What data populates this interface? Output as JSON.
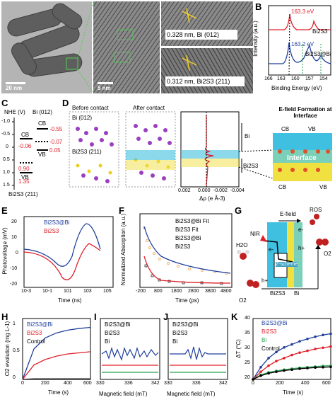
{
  "labels": [
    "A",
    "B",
    "C",
    "D",
    "E",
    "F",
    "G",
    "H",
    "I",
    "J",
    "K"
  ],
  "panel_a": {
    "scale_bar_1": "20 nm",
    "scale_bar_2": "5 nm",
    "inset_top": "0.328 nm, Bi (012)",
    "inset_bottom": "0.312 nm, Bi2S3 (211)"
  },
  "chart_data": [
    {
      "panel": "B",
      "type": "line",
      "xlabel": "Binding Energy (eV)",
      "ylabel": "Intensity (a.u.)",
      "xticks": [
        166,
        163,
        160,
        157,
        154
      ],
      "annotations": [
        "163.3 eV",
        "163.2 eV"
      ],
      "series": [
        {
          "name": "Bi2S3",
          "color": "#e0202a"
        },
        {
          "name": "Bi2S3@Bi",
          "color": "#1f3f9c"
        }
      ]
    },
    {
      "panel": "E",
      "type": "line",
      "xlabel": "Time (ns)",
      "ylabel": "Photovoltage (mV)",
      "yticks": [
        -20,
        -10,
        0,
        10,
        20
      ],
      "xticks": [
        "10-3",
        "10-1",
        "101",
        "103",
        "105"
      ],
      "series": [
        {
          "name": "Bi2S3@Bi",
          "color": "#1f3f9c"
        },
        {
          "name": "Bi2S3",
          "color": "#e0202a"
        }
      ]
    },
    {
      "panel": "F",
      "type": "line",
      "xlabel": "Time (ps)",
      "ylabel": "Normalized Absorption (a.u.)",
      "xticks": [
        -200,
        800,
        1800,
        2800,
        3800,
        4800
      ],
      "series": [
        {
          "name": "Bi2S3@Bi Fit",
          "color": "#1f3f9c"
        },
        {
          "name": "Bi2S3 Fit",
          "color": "#e0202a"
        },
        {
          "name": "Bi2S3@Bi",
          "color": "#f0a040"
        },
        {
          "name": "Bi2S3",
          "color": "#333333"
        }
      ]
    },
    {
      "panel": "H",
      "type": "line",
      "xlabel": "Time (s)",
      "ylabel": "O2 evolution (mg L-1)",
      "xticks": [
        0,
        200,
        400,
        600
      ],
      "yticks": [
        0.0,
        0.5,
        1.0
      ],
      "x": [
        0,
        100,
        200,
        300,
        400,
        500,
        600
      ],
      "series": [
        {
          "name": "Bi2S3@Bi",
          "color": "#1f3f9c",
          "values": [
            0,
            0.55,
            0.75,
            0.84,
            0.89,
            0.92,
            0.94
          ]
        },
        {
          "name": "Bi2S3",
          "color": "#e0202a",
          "values": [
            0,
            0.26,
            0.36,
            0.42,
            0.46,
            0.48,
            0.5
          ]
        },
        {
          "name": "Control",
          "color": "#000000",
          "values": [
            0,
            0.01,
            0.01,
            0.01,
            0.01,
            0.01,
            0.01
          ]
        }
      ]
    },
    {
      "panel": "I",
      "type": "line",
      "xlabel": "Magnetic field (mT)",
      "xticks": [
        330,
        336,
        342
      ],
      "series": [
        {
          "name": "Bi2S3@Bi",
          "color": "#1f3f9c"
        },
        {
          "name": "Bi2S3",
          "color": "#e0202a"
        },
        {
          "name": "Bi",
          "color": "#2aa050"
        }
      ]
    },
    {
      "panel": "J",
      "type": "line",
      "xlabel": "Magnetic field (mT)",
      "xticks": [
        330,
        336,
        342
      ],
      "series": [
        {
          "name": "Bi2S3@Bi",
          "color": "#1f3f9c"
        },
        {
          "name": "Bi2S3",
          "color": "#e0202a"
        },
        {
          "name": "Bi",
          "color": "#2aa050"
        }
      ]
    },
    {
      "panel": "K",
      "type": "line",
      "xlabel": "Time (s)",
      "ylabel": "ΔT (°C)",
      "xticks": [
        0,
        200,
        400,
        600
      ],
      "yticks": [
        20,
        25,
        30,
        35,
        40
      ],
      "x": [
        0,
        60,
        120,
        180,
        240,
        300,
        360,
        420,
        480,
        540,
        600
      ],
      "series": [
        {
          "name": "Bi2S3@Bi",
          "color": "#1f3f9c",
          "values": [
            20,
            24,
            27,
            29,
            30.5,
            31.5,
            32.5,
            33.3,
            34,
            34.6,
            35
          ]
        },
        {
          "name": "Bi2S3",
          "color": "#e0202a",
          "values": [
            20,
            22.5,
            24.5,
            26,
            27,
            28,
            28.8,
            29.4,
            30,
            30.4,
            30.8
          ]
        },
        {
          "name": "Bi",
          "color": "#2aa050",
          "values": [
            20,
            21.5,
            22.3,
            22.8,
            23.2,
            23.5,
            23.8,
            24,
            24.2,
            24.4,
            24.5
          ]
        },
        {
          "name": "Control",
          "color": "#000000",
          "values": [
            20,
            21.2,
            22,
            22.5,
            22.9,
            23.2,
            23.5,
            23.7,
            23.9,
            24,
            24.1
          ]
        }
      ]
    }
  ],
  "panel_c": {
    "axis": "NHE (V)",
    "yticks": [
      "-1.0",
      "-0.5",
      "0",
      "0.5",
      "1.0",
      "1.5"
    ],
    "bi": "Bi (012)",
    "bi2s3": "Bi2S3 (211)",
    "cb": "CB",
    "vb": "VB",
    "values": [
      "-0.55",
      "-0.07",
      "0.05",
      "-0.06",
      "0.90",
      "1.35"
    ]
  },
  "panel_d": {
    "before": "Before  contact",
    "after": "After contact",
    "bi": "Bi (012)",
    "bi2s3": "Bi2S3 (211)",
    "xlabel": "Δρ (e Å-3)",
    "xticks": [
      "0.002",
      "0.000",
      "-0.002",
      "-0.004"
    ],
    "region_bi": "Bi",
    "region_bi2s3": "Bi2S3",
    "efield_title": "E-field Formation at Interface",
    "cb": "CB",
    "vb": "VB",
    "interface": "Interface"
  },
  "panel_g": {
    "ros": "ROS",
    "efield": "E-field",
    "nir": "NIR",
    "h2o": "H2O",
    "zscheme": "Z-scheme",
    "o2": "O2",
    "bi2s3": "Bi2S3",
    "bi": "Bi",
    "e": "e-",
    "h": "h+"
  }
}
